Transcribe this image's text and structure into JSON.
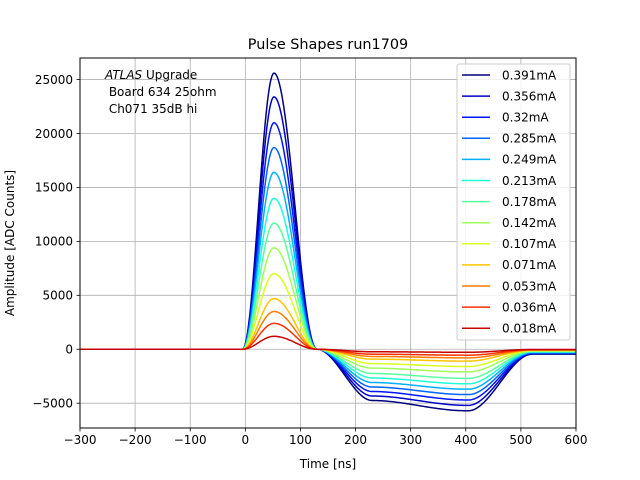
{
  "chart_data": {
    "type": "line",
    "title": "Pulse Shapes run1709",
    "xlabel": "Time [ns]",
    "ylabel": "Amplitude [ADC Counts]",
    "xlim": [
      -300,
      600
    ],
    "ylim": [
      -7300,
      27000
    ],
    "xticks": [
      -300,
      -200,
      -100,
      0,
      100,
      200,
      300,
      400,
      500,
      600
    ],
    "xtick_labels": [
      "−300",
      "−200",
      "−100",
      "0",
      "100",
      "200",
      "300",
      "400",
      "500",
      "600"
    ],
    "yticks": [
      -5000,
      0,
      5000,
      10000,
      15000,
      20000,
      25000
    ],
    "ytick_labels": [
      "−5000",
      "0",
      "5000",
      "10000",
      "15000",
      "20000",
      "25000"
    ],
    "grid": true,
    "legend_position": "top-right",
    "annotation": {
      "atlas": "ATLAS",
      "atlas_suffix": " Upgrade",
      "line2": " Board 634 25ohm",
      "line3": " Ch071 35dB hi"
    },
    "series": [
      {
        "name": "0.391mA",
        "peak": 25600,
        "undershoot": -5700,
        "color": "#00007f"
      },
      {
        "name": "0.356mA",
        "peak": 23400,
        "undershoot": -5200,
        "color": "#0000c8"
      },
      {
        "name": "0.32mA",
        "peak": 21000,
        "undershoot": -4700,
        "color": "#0014ff"
      },
      {
        "name": "0.285mA",
        "peak": 18700,
        "undershoot": -4200,
        "color": "#0064ff"
      },
      {
        "name": "0.249mA",
        "peak": 16400,
        "undershoot": -3700,
        "color": "#00b0ff"
      },
      {
        "name": "0.213mA",
        "peak": 14000,
        "undershoot": -3200,
        "color": "#1cffda"
      },
      {
        "name": "0.178mA",
        "peak": 11700,
        "undershoot": -2700,
        "color": "#56ffa0"
      },
      {
        "name": "0.142mA",
        "peak": 9400,
        "undershoot": -2100,
        "color": "#a0ff56"
      },
      {
        "name": "0.107mA",
        "peak": 7000,
        "undershoot": -1600,
        "color": "#daff1c"
      },
      {
        "name": "0.071mA",
        "peak": 4700,
        "undershoot": -1100,
        "color": "#ffc400"
      },
      {
        "name": "0.053mA",
        "peak": 3500,
        "undershoot": -800,
        "color": "#ff7a00"
      },
      {
        "name": "0.036mA",
        "peak": 2400,
        "undershoot": -550,
        "color": "#ff2f00"
      },
      {
        "name": "0.018mA",
        "peak": 1200,
        "undershoot": -280,
        "color": "#c80000"
      }
    ]
  }
}
